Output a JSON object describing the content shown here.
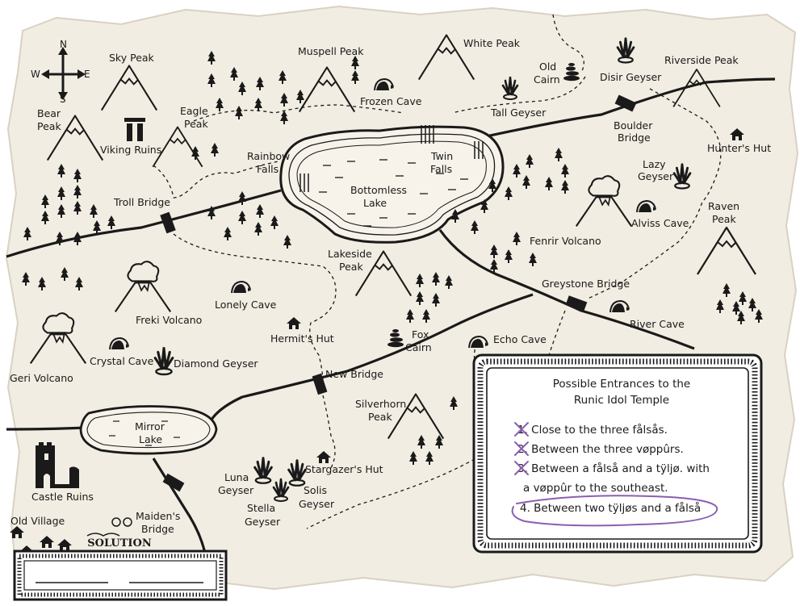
{
  "map": {
    "compass": {
      "n": "N",
      "s": "S",
      "e": "E",
      "w": "W"
    },
    "labels": {
      "sky_peak": "Sky Peak",
      "muspell_peak": "Muspell Peak",
      "white_peak": "White Peak",
      "old_cairn_1": "Old",
      "old_cairn_2": "Cairn",
      "disir_geyser": "Disir Geyser",
      "riverside_peak": "Riverside Peak",
      "bear_peak_1": "Bear",
      "bear_peak_2": "Peak",
      "eagle_peak_1": "Eagle",
      "eagle_peak_2": "Peak",
      "viking_ruins": "Viking Ruins",
      "frozen_cave": "Frozen Cave",
      "tall_geyser": "Tall Geyser",
      "boulder_bridge_1": "Boulder",
      "boulder_bridge_2": "Bridge",
      "hunters_hut": "Hunter's Hut",
      "rainbow_falls_1": "Rainbow",
      "rainbow_falls_2": "Falls",
      "twin_falls_1": "Twin",
      "twin_falls_2": "Falls",
      "bottomless_lake_1": "Bottomless",
      "bottomless_lake_2": "Lake",
      "lazy_geyser_1": "Lazy",
      "lazy_geyser_2": "Geyser",
      "troll_bridge": "Troll Bridge",
      "alviss_cave": "Alviss Cave",
      "raven_peak_1": "Raven",
      "raven_peak_2": "Peak",
      "fenrir_volcano": "Fenrir Volcano",
      "lakeside_peak_1": "Lakeside",
      "lakeside_peak_2": "Peak",
      "greystone_bridge": "Greystone Bridge",
      "lonely_cave": "Lonely Cave",
      "freki_volcano": "Freki Volcano",
      "river_cave": "River Cave",
      "hermits_hut": "Hermit's Hut",
      "fox_cairn_1": "Fox",
      "fox_cairn_2": "Cairn",
      "echo_cave": "Echo Cave",
      "crystal_cave": "Crystal Cave",
      "diamond_geyser": "Diamond Geyser",
      "geri_volcano": "Geri Volcano",
      "new_bridge": "New Bridge",
      "silverhorn_peak_1": "Silverhorn",
      "silverhorn_peak_2": "Peak",
      "mirror_lake_1": "Mirror",
      "mirror_lake_2": "Lake",
      "castle_ruins": "Castle Ruins",
      "stargazers_hut": "Stargazer's Hut",
      "luna_geyser_1": "Luna",
      "luna_geyser_2": "Geyser",
      "solis_geyser_1": "Solis",
      "solis_geyser_2": "Geyser",
      "stella_geyser_1": "Stella",
      "stella_geyser_2": "Geyser",
      "old_village": "Old Village",
      "maidens_bridge_1": "Maiden's",
      "maidens_bridge_2": "Bridge"
    }
  },
  "clue_panel": {
    "title_line1": "Possible Entrances to the",
    "title_line2": "Runic Idol Temple",
    "clues": [
      {
        "text": "1. Close to the three fålsås.",
        "crossed": true
      },
      {
        "text": "2. Between the three vøppûrs.",
        "crossed": true
      },
      {
        "text": "3. Between a fålså and a tÿljø. with",
        "crossed": true
      },
      {
        "text": "a vøppûr to the southeast.",
        "crossed": false
      },
      {
        "text": "4. Between two tÿljøs and a fålså",
        "circled": true
      }
    ],
    "accent_color": "#8a5fb0"
  },
  "solution": {
    "title": "SOLUTION"
  }
}
